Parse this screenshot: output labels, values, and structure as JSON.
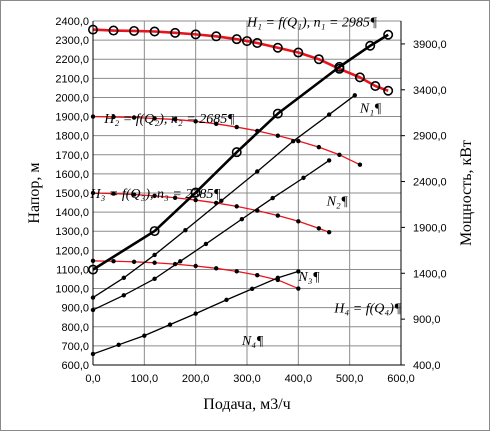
{
  "chart_data": {
    "type": "line",
    "xlabel": "Подача, м3/ч",
    "ylabel": "Напор, м",
    "y2label": "Мощность, кВт",
    "xlim": [
      0,
      600
    ],
    "ylim": [
      600,
      2400
    ],
    "y2lim": [
      400,
      4150
    ],
    "grid": true,
    "x_ticks": [
      "0,0",
      "100,0",
      "200,0",
      "300,0",
      "400,0",
      "500,0",
      "600,0"
    ],
    "y_ticks": [
      "600,0",
      "700,0",
      "800,0",
      "900,0",
      "1000,0",
      "1100,0",
      "1200,0",
      "1300,0",
      "1400,0",
      "1500,0",
      "1600,0",
      "1700,0",
      "1800,0",
      "1900,0",
      "2000,0",
      "2100,0",
      "2200,0",
      "2300,0",
      "2400,0"
    ],
    "y2_ticks": [
      "400,0",
      "900,0",
      "1400,0",
      "1900,0",
      "2400,0",
      "2900,0",
      "3400,0",
      "3900,0"
    ],
    "series": [
      {
        "axis": "left",
        "color": "#e8141b",
        "bold": true,
        "marker": "open",
        "points": [
          [
            0,
            2355
          ],
          [
            40,
            2350
          ],
          [
            80,
            2348
          ],
          [
            120,
            2345
          ],
          [
            160,
            2338
          ],
          [
            200,
            2330
          ],
          [
            240,
            2320
          ],
          [
            280,
            2305
          ],
          [
            300,
            2295
          ],
          [
            320,
            2285
          ],
          [
            360,
            2260
          ],
          [
            400,
            2235
          ],
          [
            440,
            2200
          ],
          [
            480,
            2150
          ],
          [
            520,
            2105
          ],
          [
            550,
            2060
          ],
          [
            575,
            2035
          ]
        ]
      },
      {
        "axis": "left",
        "color": "#e8141b",
        "bold": false,
        "marker": "dot",
        "points": [
          [
            0,
            1900
          ],
          [
            40,
            1898
          ],
          [
            80,
            1895
          ],
          [
            120,
            1890
          ],
          [
            160,
            1885
          ],
          [
            200,
            1875
          ],
          [
            240,
            1862
          ],
          [
            280,
            1845
          ],
          [
            320,
            1825
          ],
          [
            360,
            1800
          ],
          [
            400,
            1772
          ],
          [
            440,
            1740
          ],
          [
            480,
            1700
          ],
          [
            520,
            1648
          ]
        ]
      },
      {
        "axis": "left",
        "color": "#e8141b",
        "bold": false,
        "marker": "dot",
        "points": [
          [
            0,
            1500
          ],
          [
            40,
            1497
          ],
          [
            80,
            1492
          ],
          [
            120,
            1485
          ],
          [
            160,
            1475
          ],
          [
            200,
            1463
          ],
          [
            240,
            1448
          ],
          [
            280,
            1430
          ],
          [
            320,
            1408
          ],
          [
            360,
            1382
          ],
          [
            400,
            1352
          ],
          [
            440,
            1315
          ],
          [
            460,
            1295
          ]
        ]
      },
      {
        "axis": "left",
        "color": "#e8141b",
        "bold": false,
        "marker": "dot",
        "points": [
          [
            0,
            1145
          ],
          [
            40,
            1143
          ],
          [
            80,
            1140
          ],
          [
            120,
            1135
          ],
          [
            160,
            1128
          ],
          [
            200,
            1118
          ],
          [
            240,
            1106
          ],
          [
            280,
            1090
          ],
          [
            320,
            1070
          ],
          [
            360,
            1045
          ],
          [
            400,
            1000
          ]
        ]
      },
      {
        "axis": "right",
        "color": "#000000",
        "bold": true,
        "marker": "open",
        "points": [
          [
            0,
            1440
          ],
          [
            120,
            1860
          ],
          [
            200,
            2280
          ],
          [
            280,
            2720
          ],
          [
            360,
            3140
          ],
          [
            480,
            3650
          ],
          [
            540,
            3880
          ],
          [
            575,
            4000
          ]
        ]
      },
      {
        "axis": "right",
        "color": "#000000",
        "bold": false,
        "marker": "dot",
        "points": [
          [
            0,
            1135
          ],
          [
            60,
            1350
          ],
          [
            120,
            1600
          ],
          [
            180,
            1870
          ],
          [
            250,
            2190
          ],
          [
            320,
            2510
          ],
          [
            390,
            2840
          ],
          [
            460,
            3130
          ],
          [
            510,
            3340
          ]
        ]
      },
      {
        "axis": "right",
        "color": "#000000",
        "bold": false,
        "marker": "dot",
        "points": [
          [
            0,
            1000
          ],
          [
            60,
            1160
          ],
          [
            120,
            1340
          ],
          [
            170,
            1530
          ],
          [
            220,
            1720
          ],
          [
            290,
            1990
          ],
          [
            350,
            2220
          ],
          [
            410,
            2440
          ],
          [
            460,
            2630
          ]
        ]
      },
      {
        "axis": "right",
        "color": "#000000",
        "bold": false,
        "marker": "dot",
        "points": [
          [
            0,
            520
          ],
          [
            50,
            620
          ],
          [
            100,
            720
          ],
          [
            150,
            840
          ],
          [
            200,
            960
          ],
          [
            260,
            1110
          ],
          [
            310,
            1230
          ],
          [
            360,
            1350
          ],
          [
            400,
            1420
          ]
        ]
      }
    ],
    "annotations": [
      {
        "text": "H₁ = f(Q₁), n₁ = 2985¶",
        "x": 300,
        "y": 2370
      },
      {
        "text": "H₂ = f(Q₂), n₂ = 2685¶",
        "x": 22,
        "y": 1865
      },
      {
        "text": "H₃ = f(Q₃), n₃ = 2385¶",
        "x": -5,
        "y": 1475
      },
      {
        "text": "H₄ = f(Q₄)¶",
        "x": 470,
        "y": 875
      },
      {
        "text": "N₁¶",
        "x": 520,
        "y": 1920
      },
      {
        "text": "N₂¶",
        "x": 455,
        "y": 1435
      },
      {
        "text": "N₃¶",
        "x": 400,
        "y": 1040
      },
      {
        "text": "N₄¶",
        "x": 290,
        "y": 705
      }
    ]
  }
}
